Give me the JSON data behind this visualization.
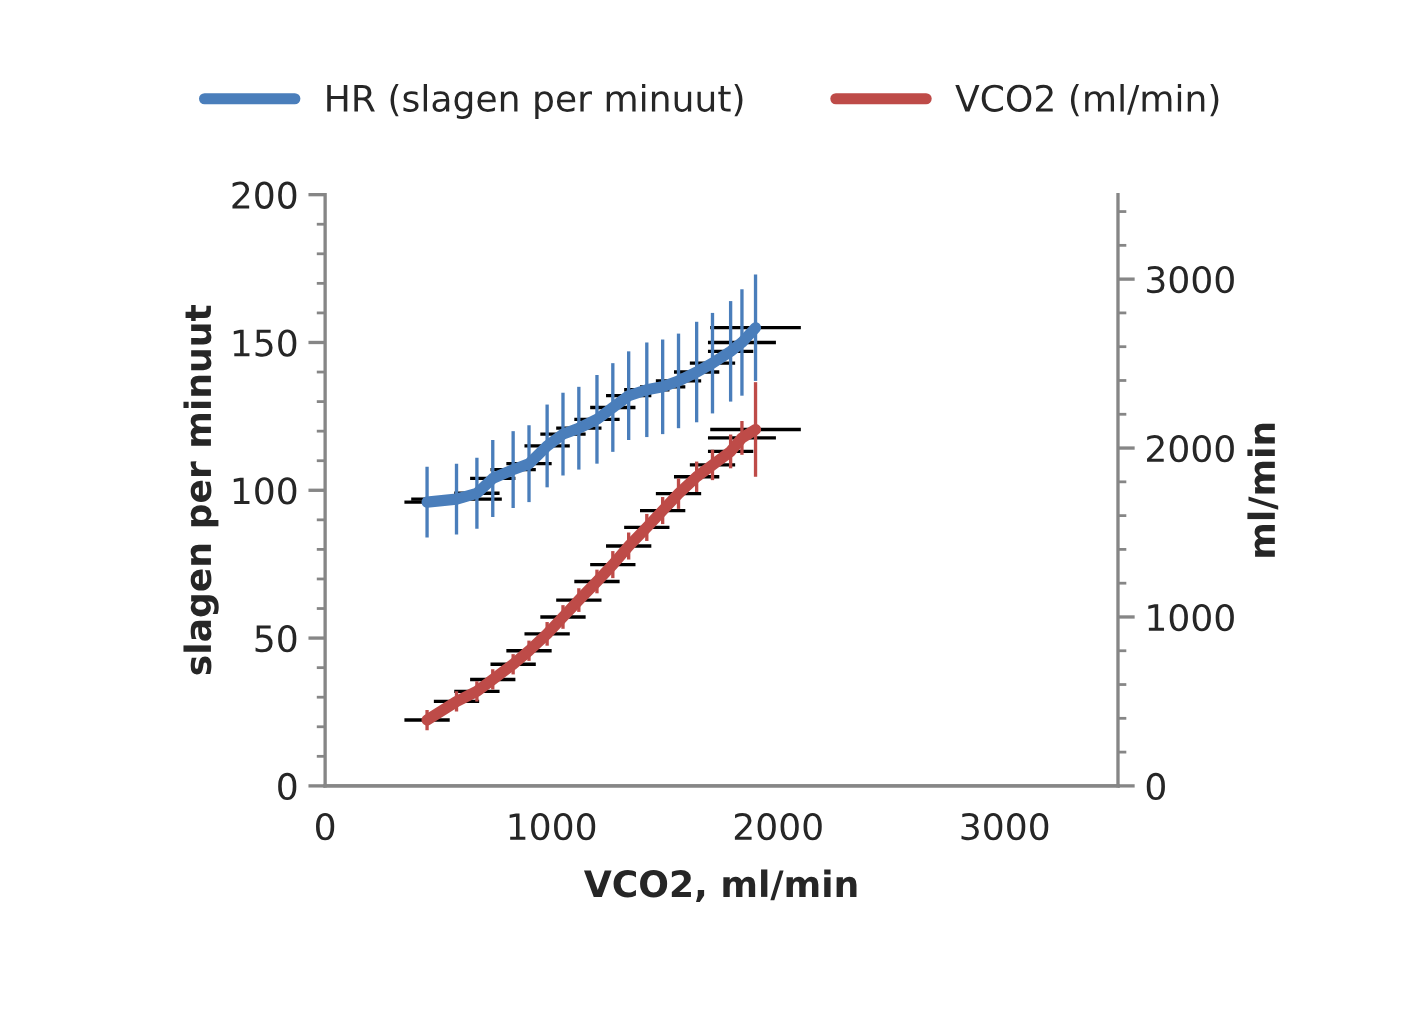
{
  "chart_data": {
    "type": "line",
    "xlabel": "VCO2, ml/min",
    "ylabel": "slagen per minuut",
    "y2label": "ml/min",
    "x": [
      450,
      580,
      670,
      740,
      830,
      900,
      980,
      1050,
      1120,
      1200,
      1270,
      1340,
      1420,
      1490,
      1560,
      1640,
      1710,
      1790,
      1840,
      1900
    ],
    "series": [
      {
        "name": "HR (slagen per minuut)",
        "color": "#4a7ebb",
        "values": [
          96,
          97,
          99,
          104,
          107,
          109,
          115,
          119,
          121,
          124,
          128,
          132,
          134,
          135,
          137,
          140,
          143,
          147,
          150,
          155
        ],
        "errors": [
          12,
          12,
          12,
          13,
          13,
          13,
          14,
          14,
          14,
          15,
          15,
          15,
          16,
          16,
          16,
          17,
          17,
          17,
          18,
          18
        ],
        "xerrors": [
          100,
          200,
          100,
          100,
          100,
          100,
          100,
          100,
          100,
          100,
          100,
          100,
          100,
          100,
          100,
          100,
          100,
          100,
          150,
          200
        ]
      },
      {
        "name": "VCO2 (ml/min)",
        "color": "#be4b48",
        "axis": "y2",
        "values": [
          390,
          500,
          560,
          630,
          720,
          800,
          900,
          1000,
          1100,
          1210,
          1310,
          1420,
          1530,
          1630,
          1730,
          1830,
          1900,
          1980,
          2060,
          2110
        ],
        "errors": [
          60,
          60,
          60,
          60,
          60,
          60,
          70,
          70,
          70,
          70,
          80,
          80,
          80,
          80,
          90,
          90,
          90,
          100,
          100,
          280
        ],
        "xerrors": [
          100,
          100,
          100,
          100,
          100,
          100,
          100,
          100,
          100,
          100,
          100,
          100,
          100,
          100,
          100,
          100,
          100,
          100,
          150,
          200
        ]
      }
    ],
    "xlim": [
      0,
      3500
    ],
    "xticks": [
      0,
      1000,
      2000,
      3000
    ],
    "ylim": [
      0,
      200
    ],
    "yticks": [
      0,
      50,
      100,
      150,
      200
    ],
    "y2lim": [
      0,
      3500
    ],
    "y2ticks": [
      0,
      1000,
      2000,
      3000
    ],
    "legend": "top",
    "grid": false,
    "marker": "none",
    "line_style": "solid"
  }
}
